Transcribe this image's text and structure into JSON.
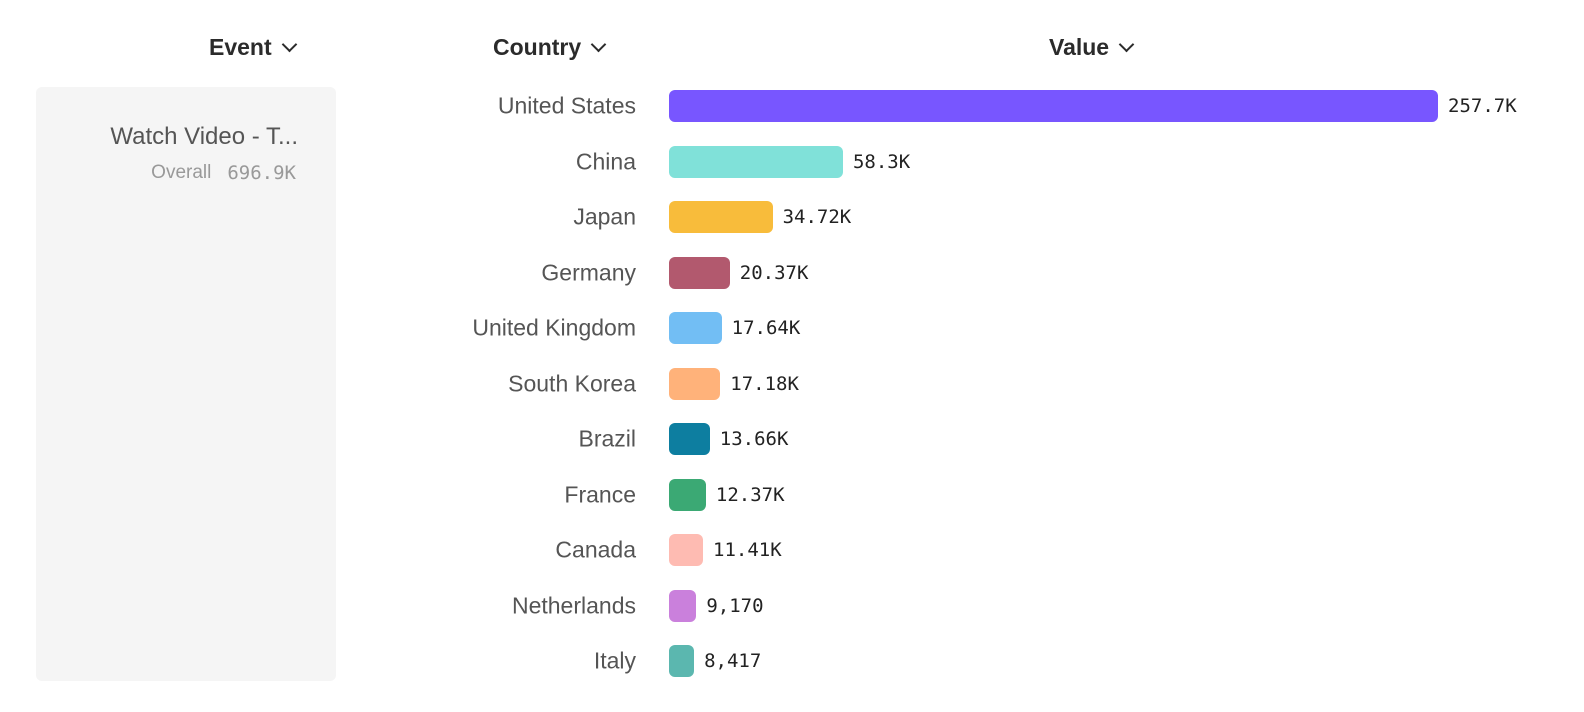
{
  "headers": {
    "event": "Event",
    "country": "Country",
    "value": "Value"
  },
  "event": {
    "name": "Watch Video - T...",
    "overall_label": "Overall",
    "overall_value": "696.9K"
  },
  "chart_data": {
    "type": "bar",
    "orientation": "horizontal",
    "categories": [
      "United States",
      "China",
      "Japan",
      "Germany",
      "United Kingdom",
      "South Korea",
      "Brazil",
      "France",
      "Canada",
      "Netherlands",
      "Italy"
    ],
    "values": [
      257700,
      58300,
      34720,
      20370,
      17640,
      17180,
      13660,
      12370,
      11410,
      9170,
      8417
    ],
    "value_labels": [
      "257.7K",
      "58.3K",
      "34.72K",
      "20.37K",
      "17.64K",
      "17.18K",
      "13.66K",
      "12.37K",
      "11.41K",
      "9,170",
      "8,417"
    ],
    "colors": [
      "#7856FF",
      "#80E1D9",
      "#F8BC3B",
      "#B2596E",
      "#72BEF4",
      "#FFB27A",
      "#0D7EA0",
      "#3BA974",
      "#FEBBB2",
      "#CA80DC",
      "#5BB7AF"
    ],
    "grid": false
  }
}
